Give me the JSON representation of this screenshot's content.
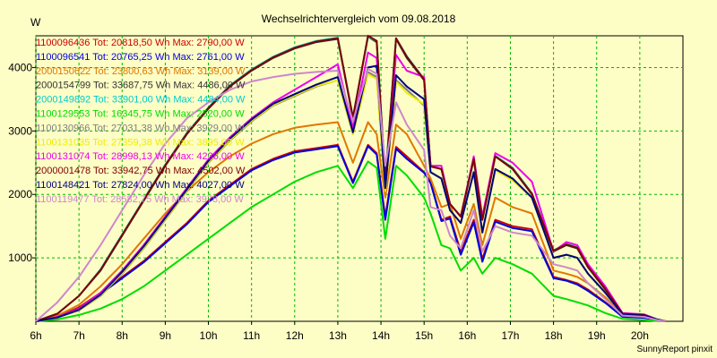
{
  "chart_data": {
    "type": "line",
    "title": "Wechselrichtervergleich vom 09.08.2018",
    "ylabel": "W",
    "xlabel": "",
    "footer": "SunnyReport pinxit",
    "legend_position": "top-left",
    "grid": true,
    "ylim": [
      0,
      4500
    ],
    "yticks": [
      1000,
      2000,
      3000,
      4000
    ],
    "xlim": [
      6,
      21
    ],
    "xticks": [
      {
        "v": 6,
        "label": "6h"
      },
      {
        "v": 7,
        "label": "7h"
      },
      {
        "v": 8,
        "label": "8h"
      },
      {
        "v": 9,
        "label": "9h"
      },
      {
        "v": 10,
        "label": "10h"
      },
      {
        "v": 11,
        "label": "11h"
      },
      {
        "v": 12,
        "label": "12h"
      },
      {
        "v": 13,
        "label": "13h"
      },
      {
        "v": 14,
        "label": "14h"
      },
      {
        "v": 15,
        "label": "15h"
      },
      {
        "v": 16,
        "label": "16h"
      },
      {
        "v": 17,
        "label": "17h"
      },
      {
        "v": 18,
        "label": "18h"
      },
      {
        "v": 19,
        "label": "19h"
      },
      {
        "v": 20,
        "label": "20h"
      }
    ],
    "x": [
      6.0,
      6.5,
      7.0,
      7.5,
      8.0,
      8.5,
      9.0,
      9.5,
      10.0,
      10.5,
      11.0,
      11.5,
      12.0,
      12.5,
      13.0,
      13.35,
      13.7,
      13.9,
      14.1,
      14.35,
      14.6,
      15.0,
      15.15,
      15.4,
      15.6,
      15.85,
      16.15,
      16.35,
      16.65,
      17.05,
      17.5,
      18.0,
      18.3,
      18.55,
      18.8,
      19.2,
      19.6,
      20.1,
      20.4,
      20.6
    ],
    "series": [
      {
        "name": "1100096436 Tot: 20818,50 Wh Max: 2790,00 W",
        "color": "#cc0000",
        "values": [
          0,
          70,
          220,
          450,
          700,
          950,
          1250,
          1550,
          1900,
          2150,
          2400,
          2560,
          2680,
          2730,
          2780,
          2200,
          2780,
          2650,
          1650,
          2750,
          2600,
          2350,
          2200,
          1600,
          1650,
          1100,
          1600,
          980,
          1600,
          1500,
          1450,
          700,
          650,
          600,
          500,
          300,
          80,
          60,
          20,
          0
        ]
      },
      {
        "name": "1100096541 Tot: 20765,25 Wh Max: 2761,00 W",
        "color": "#0000dd",
        "values": [
          0,
          60,
          200,
          430,
          680,
          930,
          1230,
          1530,
          1880,
          2130,
          2380,
          2540,
          2660,
          2710,
          2760,
          2180,
          2760,
          2630,
          1600,
          2720,
          2560,
          2340,
          2180,
          1580,
          1620,
          1050,
          1560,
          940,
          1570,
          1470,
          1420,
          680,
          640,
          580,
          480,
          290,
          70,
          55,
          18,
          0
        ]
      },
      {
        "name": "2000150622 Tot: 23800,63 Wh Max: 3139,00 W",
        "color": "#e07800",
        "values": [
          0,
          90,
          260,
          550,
          900,
          1300,
          1700,
          2050,
          2350,
          2600,
          2800,
          2950,
          3050,
          3100,
          3139,
          2500,
          3139,
          2950,
          1950,
          3100,
          2950,
          2450,
          2250,
          1800,
          1850,
          1300,
          1850,
          1200,
          1950,
          1800,
          1700,
          800,
          750,
          700,
          600,
          380,
          100,
          80,
          25,
          0
        ]
      },
      {
        "name": "2000154799 Tot: 33687,75 Wh Max: 4486,00 W",
        "color": "#333333",
        "values": [
          0,
          120,
          400,
          800,
          1350,
          1900,
          2450,
          2950,
          3350,
          3700,
          3950,
          4150,
          4300,
          4400,
          4450,
          3200,
          4486,
          4400,
          2200,
          4450,
          4150,
          3800,
          2450,
          2400,
          1850,
          1650,
          2550,
          1600,
          2600,
          2400,
          2000,
          1100,
          1200,
          1150,
          850,
          500,
          120,
          100,
          30,
          0
        ]
      },
      {
        "name": "2000149892 Tot: 33901,00 Wh Max: 4484,00 W",
        "color": "#00cccc",
        "values": [
          0,
          120,
          400,
          820,
          1370,
          1920,
          2470,
          2970,
          3370,
          3720,
          3970,
          4170,
          4320,
          4420,
          4470,
          3220,
          4484,
          4420,
          2250,
          4460,
          4180,
          3820,
          2450,
          2400,
          1850,
          1650,
          2560,
          1600,
          2610,
          2420,
          2020,
          1120,
          1220,
          1170,
          870,
          520,
          125,
          105,
          32,
          0
        ]
      },
      {
        "name": "1100129553 Tot: 16345,75 Wh Max: 2520,00 W",
        "color": "#00dd00",
        "values": [
          0,
          30,
          100,
          200,
          350,
          550,
          800,
          1050,
          1300,
          1550,
          1800,
          2000,
          2200,
          2350,
          2450,
          2100,
          2520,
          2420,
          1300,
          2450,
          2300,
          1950,
          1700,
          1200,
          1150,
          800,
          1000,
          750,
          1000,
          900,
          750,
          400,
          350,
          300,
          250,
          130,
          40,
          20,
          5,
          0
        ]
      },
      {
        "name": "1100130966 Tot: 27031,38 Wh Max: 3929,00 W",
        "color": "#7f7f7f",
        "values": [
          0,
          60,
          170,
          400,
          750,
          1150,
          1600,
          2050,
          2500,
          2850,
          3150,
          3400,
          3550,
          3700,
          3800,
          2950,
          3929,
          3850,
          2050,
          3800,
          3650,
          3400,
          2350,
          2250,
          1750,
          1550,
          2350,
          1400,
          2400,
          2250,
          1950,
          1000,
          1050,
          1000,
          750,
          450,
          110,
          90,
          28,
          0
        ]
      },
      {
        "name": "1100131035 Tot: 27359,38 Wh Max: 3895,00 W",
        "color": "#eeee00",
        "values": [
          0,
          60,
          170,
          410,
          760,
          1160,
          1610,
          2060,
          2510,
          2860,
          3160,
          3410,
          3560,
          3710,
          3800,
          2950,
          3895,
          3820,
          2050,
          3780,
          3600,
          3420,
          2350,
          2250,
          1750,
          1550,
          2350,
          1400,
          2380,
          2220,
          1950,
          1000,
          1050,
          1000,
          750,
          450,
          110,
          90,
          28,
          0
        ]
      },
      {
        "name": "1100131074 Tot: 28998,13 Wh Max: 4236,00 W",
        "color": "#ee00ee",
        "values": [
          0,
          70,
          200,
          450,
          800,
          1200,
          1650,
          2100,
          2550,
          2900,
          3200,
          3450,
          3650,
          3850,
          4050,
          3050,
          4236,
          4150,
          2250,
          4200,
          3950,
          3850,
          2450,
          2450,
          1850,
          1650,
          2600,
          1650,
          2650,
          2500,
          2200,
          1100,
          1250,
          1200,
          900,
          550,
          130,
          110,
          30,
          0
        ]
      },
      {
        "name": "2000001478 Tot: 33942,75 Wh Max: 4502,00 W",
        "color": "#7f0000",
        "values": [
          0,
          120,
          400,
          810,
          1360,
          1910,
          2460,
          2960,
          3360,
          3710,
          3960,
          4160,
          4310,
          4410,
          4460,
          3210,
          4502,
          4420,
          2200,
          4460,
          4170,
          3810,
          2440,
          2400,
          1850,
          1650,
          2560,
          1600,
          2600,
          2410,
          2010,
          1110,
          1210,
          1160,
          860,
          510,
          120,
          100,
          30,
          0
        ]
      },
      {
        "name": "1100148421 Tot: 27824,00 Wh Max: 4027,00 W",
        "color": "#00007f",
        "values": [
          0,
          60,
          180,
          420,
          780,
          1180,
          1630,
          2080,
          2530,
          2880,
          3180,
          3430,
          3580,
          3730,
          3850,
          2980,
          4000,
          4027,
          2100,
          3880,
          3700,
          3500,
          2350,
          2250,
          1750,
          1550,
          2350,
          1400,
          2400,
          2250,
          1950,
          1000,
          1050,
          1000,
          750,
          450,
          110,
          90,
          28,
          0
        ]
      },
      {
        "name": "1100119477 Tot: 28582,75 Wh Max: 3978,00 W",
        "color": "#cc88cc",
        "values": [
          0,
          300,
          700,
          1200,
          1750,
          2300,
          2800,
          3200,
          3450,
          3650,
          3780,
          3850,
          3900,
          3930,
          3950,
          3150,
          3978,
          3900,
          2450,
          3450,
          3100,
          2700,
          1800,
          1750,
          1350,
          1150,
          1750,
          1100,
          1500,
          1400,
          1350,
          900,
          850,
          800,
          600,
          350,
          90,
          70,
          20,
          0
        ]
      }
    ]
  }
}
